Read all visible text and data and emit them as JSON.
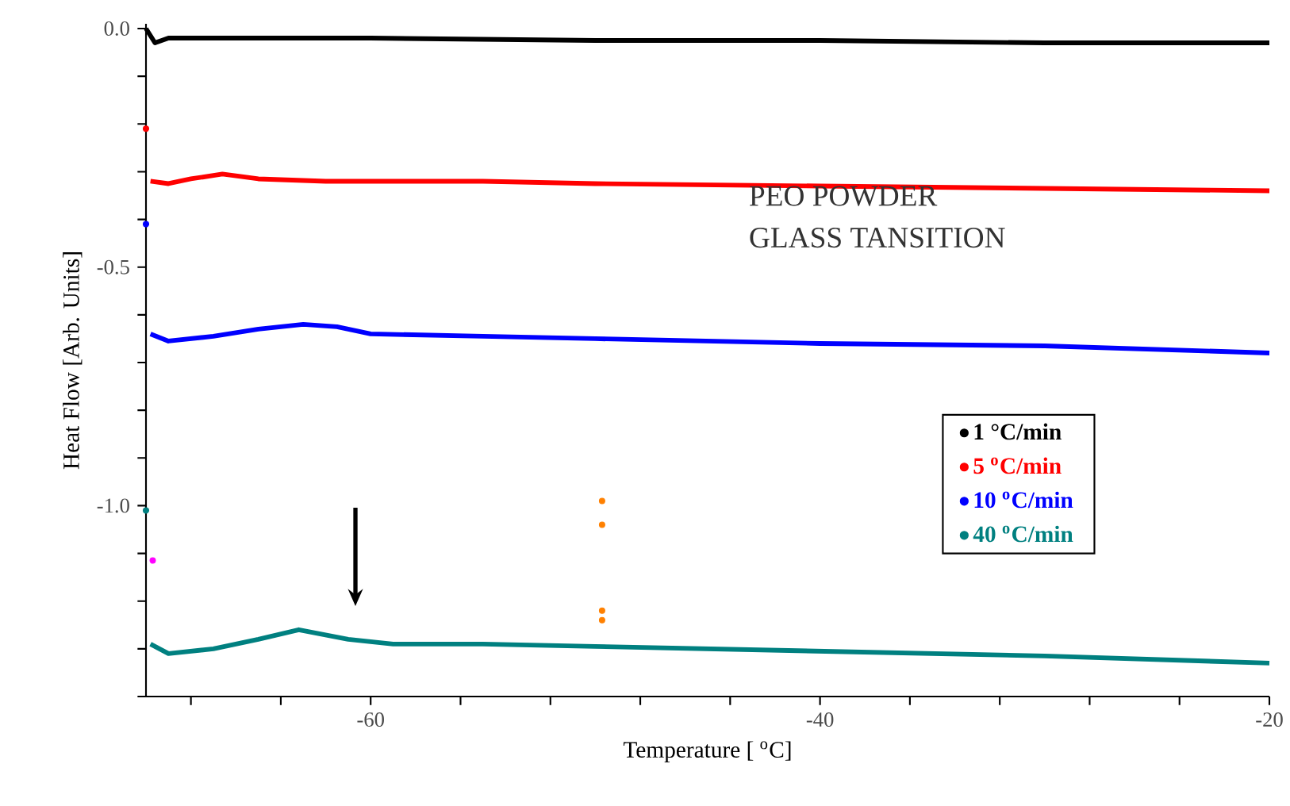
{
  "chart_data": {
    "type": "line",
    "xlabel": "Temperature [ $^{o}$C]",
    "ylabel": "Heat Flow [Arb. Units]",
    "annotations": [
      "PEO  POWDER",
      "GLASS TANSITION"
    ],
    "xlim": [
      -70,
      -20
    ],
    "ylim": [
      -1.4,
      0.01
    ],
    "xticks": [
      {
        "value": -68,
        "label": null
      },
      {
        "value": -64,
        "label": null
      },
      {
        "value": -60,
        "label": "-60"
      },
      {
        "value": -56,
        "label": null
      },
      {
        "value": -52,
        "label": null
      },
      {
        "value": -48,
        "label": null
      },
      {
        "value": -44,
        "label": null
      },
      {
        "value": -40,
        "label": "-40"
      },
      {
        "value": -36,
        "label": null
      },
      {
        "value": -32,
        "label": null
      },
      {
        "value": -28,
        "label": null
      },
      {
        "value": -24,
        "label": null
      },
      {
        "value": -20,
        "label": "-20"
      }
    ],
    "yticks": [
      {
        "value": -1.4,
        "label": null
      },
      {
        "value": -1.3,
        "label": null
      },
      {
        "value": -1.2,
        "label": null
      },
      {
        "value": -1.1,
        "label": null
      },
      {
        "value": -1.0,
        "label": "-1.0"
      },
      {
        "value": -0.9,
        "label": null
      },
      {
        "value": -0.8,
        "label": null
      },
      {
        "value": -0.7,
        "label": null
      },
      {
        "value": -0.6,
        "label": null
      },
      {
        "value": -0.5,
        "label": "-0.5"
      },
      {
        "value": -0.4,
        "label": null
      },
      {
        "value": -0.3,
        "label": null
      },
      {
        "value": -0.2,
        "label": null
      },
      {
        "value": -0.1,
        "label": null
      },
      {
        "value": 0.0,
        "label": "0.0"
      }
    ],
    "legend": "right",
    "series": [
      {
        "name": "1  °C/min",
        "color": "#000000",
        "x": [
          -70,
          -69.6,
          -69,
          -66,
          -60,
          -50,
          -40,
          -30,
          -20
        ],
        "values": [
          0.0,
          -0.03,
          -0.02,
          -0.02,
          -0.02,
          -0.025,
          -0.025,
          -0.03,
          -0.03
        ]
      },
      {
        "name": "5  $^{o}$C/min",
        "color": "#ff0000",
        "x": [
          -69.8,
          -69,
          -68,
          -66.6,
          -65,
          -62,
          -55,
          -50,
          -40,
          -30,
          -20
        ],
        "values": [
          -0.32,
          -0.325,
          -0.315,
          -0.305,
          -0.315,
          -0.32,
          -0.32,
          -0.325,
          -0.33,
          -0.335,
          -0.34
        ]
      },
      {
        "name": "10 $^{o}$C/min",
        "color": "#0000ff",
        "x": [
          -69.8,
          -69,
          -67,
          -65,
          -63,
          -61.5,
          -60,
          -55,
          -50,
          -40,
          -30,
          -20
        ],
        "values": [
          -0.64,
          -0.655,
          -0.645,
          -0.63,
          -0.62,
          -0.625,
          -0.64,
          -0.645,
          -0.65,
          -0.66,
          -0.665,
          -0.68
        ]
      },
      {
        "name": "40  $^{o}$C/min",
        "color": "#008080",
        "x": [
          -69.8,
          -69,
          -67,
          -65,
          -63.2,
          -61,
          -59,
          -55,
          -50,
          -40,
          -30,
          -20
        ],
        "values": [
          -1.29,
          -1.31,
          -1.3,
          -1.28,
          -1.26,
          -1.28,
          -1.29,
          -1.29,
          -1.295,
          -1.305,
          -1.315,
          -1.33
        ]
      },
      {
        "type": "scatter",
        "colors": [
          "#ff0000",
          "#0000ff",
          "#008080",
          "#ff00ff",
          "#ff8000",
          "#ff8000",
          "#ff8000",
          "#ff8000"
        ],
        "x": [
          -70,
          -70,
          -70,
          -69.7,
          -49.7,
          -49.7,
          -49.7,
          -49.7
        ],
        "values": [
          -0.21,
          -0.41,
          -1.01,
          -1.115,
          -0.99,
          -1.04,
          -1.22,
          -1.24
        ]
      }
    ]
  }
}
